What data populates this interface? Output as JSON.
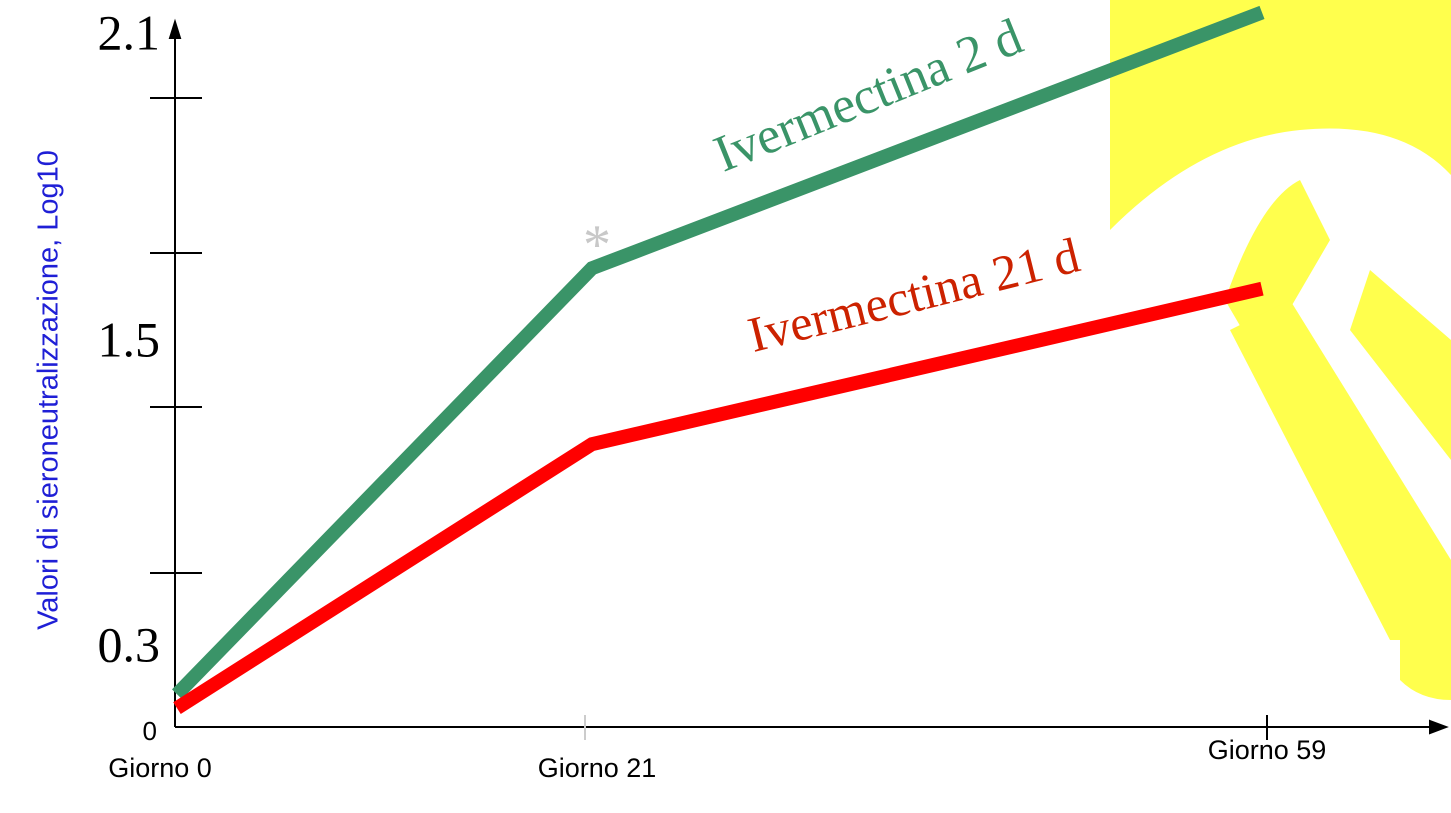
{
  "chart_data": {
    "type": "line",
    "y_label": "Valori di sieroneutralizzazione, Log10",
    "categories": [
      "Giorno 0",
      "Giorno 21",
      "Giorno 59"
    ],
    "series": [
      {
        "name": "Ivermectina 2 d",
        "color": "#3a9468",
        "values": [
          0.14,
          1.65,
          2.15
        ]
      },
      {
        "name": "Ivermectina 21 d",
        "color": "#ff0000",
        "label_color": "#cc2200",
        "values": [
          0.09,
          1.11,
          1.61
        ]
      }
    ],
    "annotations": [
      "*"
    ],
    "ylim": [
      0,
      2.1
    ],
    "yticks": [
      0,
      0.3,
      1.5,
      2.1
    ]
  }
}
